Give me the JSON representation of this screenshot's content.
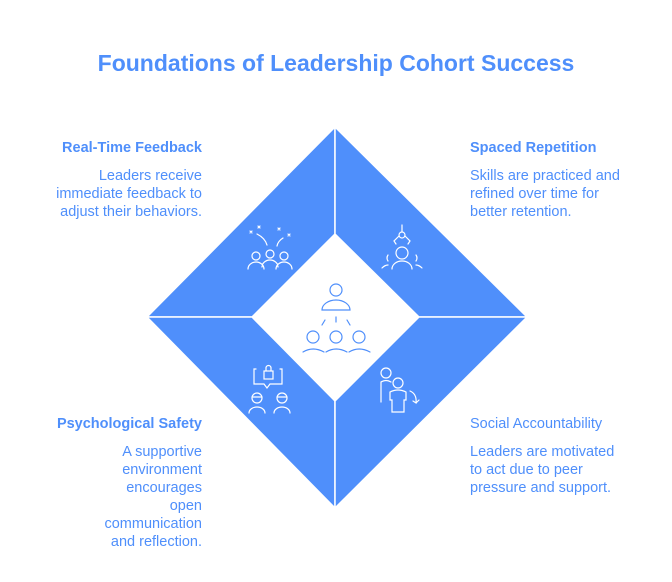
{
  "title": "Foundations of Leadership Cohort Success",
  "colors": {
    "accent": "#4f8ffb",
    "background": "#ffffff"
  },
  "quadrants": [
    {
      "title": "Real-Time Feedback",
      "text": "Leaders receive immediate feedback to adjust their behaviors.",
      "icon": "celebrating-group-icon"
    },
    {
      "title": "Spaced Repetition",
      "text": "Skills are practiced and refined over time for better retention.",
      "icon": "person-with-robotic-arm-icon"
    },
    {
      "title": "Psychological Safety",
      "text": "A supportive environment encourages open communication and reflection.",
      "icon": "lock-chat-icon"
    },
    {
      "title": "Social Accountability",
      "text": "Leaders are motivated to act due to peer pressure and support.",
      "icon": "peer-support-icon"
    }
  ],
  "center_icon": "leader-team-icon"
}
